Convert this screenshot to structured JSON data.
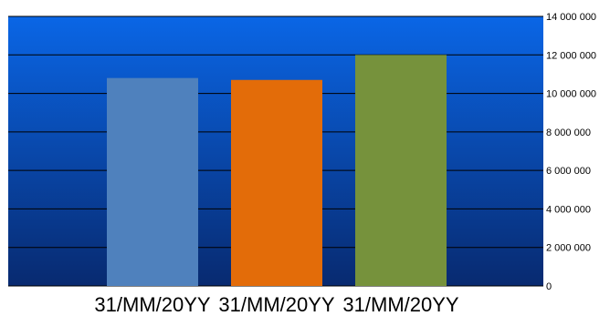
{
  "chart_data": {
    "type": "bar",
    "title": "",
    "xlabel": "",
    "ylabel": "",
    "categories": [
      "31/MM/20YY",
      "31/MM/20YY",
      "31/MM/20YY"
    ],
    "values": [
      10800000,
      10700000,
      12000000
    ],
    "bar_colors": [
      "#4f81bd",
      "#e36c09",
      "#76923c"
    ],
    "ylim": [
      0,
      14000000
    ],
    "yticks": [
      0,
      2000000,
      4000000,
      6000000,
      8000000,
      10000000,
      12000000,
      14000000
    ],
    "ytick_labels": [
      "0",
      "2 000 000",
      "4 000 000",
      "6 000 000",
      "8 000 000",
      "10 000 000",
      "12 000 000",
      "14 000 000"
    ],
    "y_axis_position": "right",
    "grid": true,
    "legend": "none",
    "plot_background": "blue gradient",
    "plot_colors": {
      "top": "#0a66e6",
      "bottom": "#082a70",
      "gridline": "#000000"
    }
  }
}
